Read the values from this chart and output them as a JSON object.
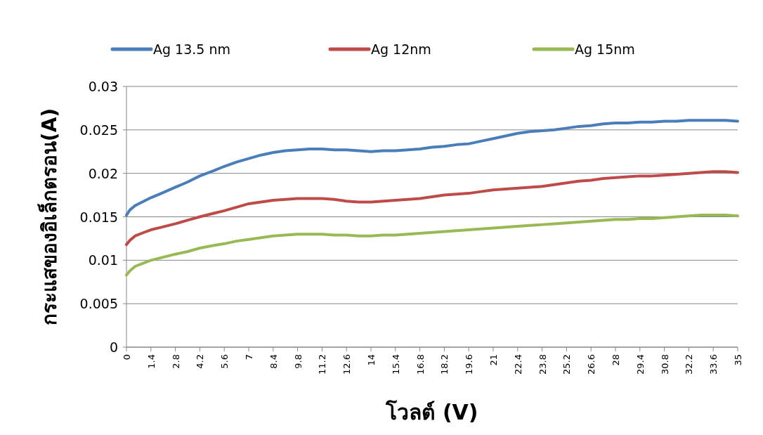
{
  "chart_data": {
    "type": "line",
    "xlabel": "โวลต์ (V)",
    "ylabel": "กระแสของอิเล็กตรอน(A)",
    "x": [
      0,
      0.2,
      0.5,
      1,
      1.4,
      2,
      2.8,
      3.5,
      4.2,
      5,
      5.6,
      6.3,
      7,
      7.7,
      8.4,
      9.1,
      9.8,
      10.5,
      11.2,
      11.9,
      12.6,
      13.3,
      14,
      14.7,
      15.4,
      16.1,
      16.8,
      17.5,
      18.2,
      18.9,
      19.6,
      20.3,
      21,
      21.7,
      22.4,
      23.1,
      23.8,
      24.5,
      25.2,
      25.9,
      26.6,
      27.3,
      28,
      28.7,
      29.4,
      30.1,
      30.8,
      31.5,
      32.2,
      32.9,
      33.6,
      34.3,
      35
    ],
    "series": [
      {
        "name": "Ag 13.5 nm",
        "color": "#4a7ebb",
        "values": [
          0.0152,
          0.0158,
          0.0163,
          0.0168,
          0.0172,
          0.0177,
          0.0184,
          0.019,
          0.0197,
          0.0203,
          0.0208,
          0.0213,
          0.0217,
          0.0221,
          0.0224,
          0.0226,
          0.0227,
          0.0228,
          0.0228,
          0.0227,
          0.0227,
          0.0226,
          0.0225,
          0.0226,
          0.0226,
          0.0227,
          0.0228,
          0.023,
          0.0231,
          0.0233,
          0.0234,
          0.0237,
          0.024,
          0.0243,
          0.0246,
          0.0248,
          0.0249,
          0.025,
          0.0252,
          0.0254,
          0.0255,
          0.0257,
          0.0258,
          0.0258,
          0.0259,
          0.0259,
          0.026,
          0.026,
          0.0261,
          0.0261,
          0.0261,
          0.0261,
          0.026
        ]
      },
      {
        "name": "Ag 12nm",
        "color": "#be4b48",
        "values": [
          0.0118,
          0.0123,
          0.0128,
          0.0132,
          0.0135,
          0.0138,
          0.0142,
          0.0146,
          0.015,
          0.0154,
          0.0157,
          0.0161,
          0.0165,
          0.0167,
          0.0169,
          0.017,
          0.0171,
          0.0171,
          0.0171,
          0.017,
          0.0168,
          0.0167,
          0.0167,
          0.0168,
          0.0169,
          0.017,
          0.0171,
          0.0173,
          0.0175,
          0.0176,
          0.0177,
          0.0179,
          0.0181,
          0.0182,
          0.0183,
          0.0184,
          0.0185,
          0.0187,
          0.0189,
          0.0191,
          0.0192,
          0.0194,
          0.0195,
          0.0196,
          0.0197,
          0.0197,
          0.0198,
          0.0199,
          0.02,
          0.0201,
          0.0202,
          0.0202,
          0.0201
        ]
      },
      {
        "name": "Ag 15nm",
        "color": "#98b954",
        "values": [
          0.0083,
          0.0088,
          0.0093,
          0.0097,
          0.01,
          0.0103,
          0.0107,
          0.011,
          0.0114,
          0.0117,
          0.0119,
          0.0122,
          0.0124,
          0.0126,
          0.0128,
          0.0129,
          0.013,
          0.013,
          0.013,
          0.0129,
          0.0129,
          0.0128,
          0.0128,
          0.0129,
          0.0129,
          0.013,
          0.0131,
          0.0132,
          0.0133,
          0.0134,
          0.0135,
          0.0136,
          0.0137,
          0.0138,
          0.0139,
          0.014,
          0.0141,
          0.0142,
          0.0143,
          0.0144,
          0.0145,
          0.0146,
          0.0147,
          0.0147,
          0.0148,
          0.0148,
          0.0149,
          0.015,
          0.0151,
          0.0152,
          0.0152,
          0.0152,
          0.0151
        ]
      }
    ],
    "xlim": [
      0,
      35
    ],
    "xticks": [
      0,
      1.4,
      2.8,
      4.2,
      5.6,
      7,
      8.4,
      9.8,
      11.2,
      12.6,
      14,
      15.4,
      16.8,
      18.2,
      19.6,
      21,
      22.4,
      23.8,
      25.2,
      26.6,
      28,
      29.4,
      30.8,
      32.2,
      33.6,
      35
    ],
    "ylim": [
      0,
      0.03
    ],
    "yticks": [
      0,
      0.005,
      0.01,
      0.015,
      0.02,
      0.025,
      0.03
    ],
    "grid": "y",
    "legend": "top",
    "marker": "none",
    "line_style": "solid"
  }
}
